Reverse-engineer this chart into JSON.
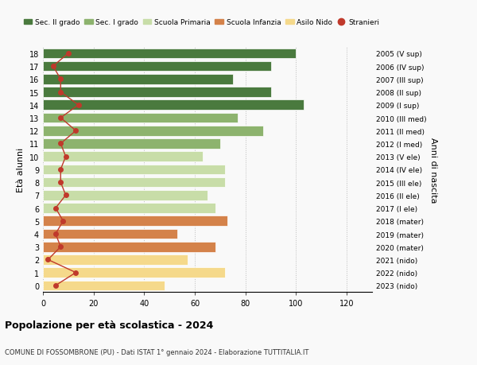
{
  "ages": [
    0,
    1,
    2,
    3,
    4,
    5,
    6,
    7,
    8,
    9,
    10,
    11,
    12,
    13,
    14,
    15,
    16,
    17,
    18
  ],
  "bar_values": [
    48,
    72,
    57,
    68,
    53,
    73,
    68,
    65,
    72,
    72,
    63,
    70,
    87,
    77,
    103,
    90,
    75,
    90,
    100
  ],
  "bar_colors": [
    "#f5d98b",
    "#f5d98b",
    "#f5d98b",
    "#d4824a",
    "#d4824a",
    "#d4824a",
    "#c8dda8",
    "#c8dda8",
    "#c8dda8",
    "#c8dda8",
    "#c8dda8",
    "#8db36e",
    "#8db36e",
    "#8db36e",
    "#4a7a3e",
    "#4a7a3e",
    "#4a7a3e",
    "#4a7a3e",
    "#4a7a3e"
  ],
  "stranieri_values": [
    5,
    13,
    2,
    7,
    5,
    8,
    5,
    9,
    7,
    7,
    9,
    7,
    13,
    7,
    14,
    7,
    7,
    4,
    10
  ],
  "right_labels": [
    "2023 (nido)",
    "2022 (nido)",
    "2021 (nido)",
    "2020 (mater)",
    "2019 (mater)",
    "2018 (mater)",
    "2017 (I ele)",
    "2016 (II ele)",
    "2015 (III ele)",
    "2014 (IV ele)",
    "2013 (V ele)",
    "2012 (I med)",
    "2011 (II med)",
    "2010 (III med)",
    "2009 (I sup)",
    "2008 (II sup)",
    "2007 (III sup)",
    "2006 (IV sup)",
    "2005 (V sup)"
  ],
  "xlim": [
    0,
    130
  ],
  "xticks": [
    0,
    20,
    40,
    60,
    80,
    100,
    120
  ],
  "ylabel_left": "Età alunni",
  "right_axis_label": "Anni di nascita",
  "title": "Popolazione per età scolastica - 2024",
  "subtitle": "COMUNE DI FOSSOMBRONE (PU) - Dati ISTAT 1° gennaio 2024 - Elaborazione TUTTITALIA.IT",
  "legend_items": [
    {
      "label": "Sec. II grado",
      "color": "#4a7a3e"
    },
    {
      "label": "Sec. I grado",
      "color": "#8db36e"
    },
    {
      "label": "Scuola Primaria",
      "color": "#c8dda8"
    },
    {
      "label": "Scuola Infanzia",
      "color": "#d4824a"
    },
    {
      "label": "Asilo Nido",
      "color": "#f5d98b"
    },
    {
      "label": "Stranieri",
      "color": "#c0392b"
    }
  ],
  "bg_color": "#f9f9f9",
  "bar_height": 0.78,
  "stranieri_line_color": "#c0392b",
  "stranieri_dot_color": "#c0392b"
}
